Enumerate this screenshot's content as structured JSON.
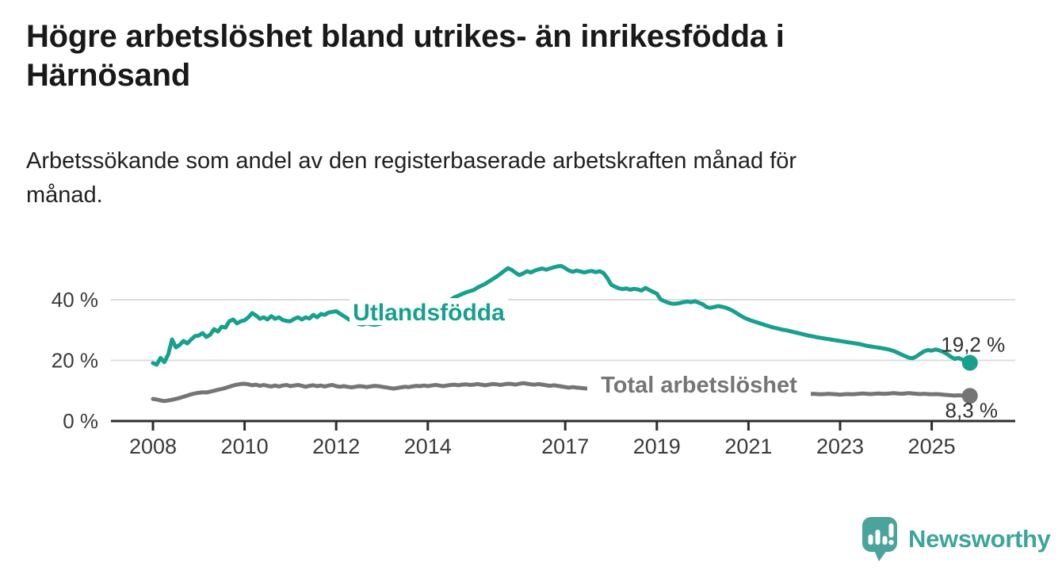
{
  "title_lines": [
    "Högre arbetslöshet bland utrikes- än inrikesfödda i",
    "Härnösand"
  ],
  "subtitle_lines": [
    "Arbetssökande som andel av den registerbaserade arbetskraften månad för",
    "månad."
  ],
  "branding": {
    "logo_text": "Newsworthy",
    "logo_color": "#3EA59B",
    "logo_icon": "bar-chart-speech-bubble"
  },
  "colors": {
    "background": "#ffffff",
    "title_text": "#191919",
    "axis_line": "#2e2e2e",
    "axis_text": "#3a3a3a",
    "gridline": "#dcdcdc",
    "annotation_text": "#2f2f2f",
    "series_foreign_born": "#16A08D",
    "series_total": "#757575"
  },
  "chart_data": {
    "type": "line",
    "x_unit": "month",
    "x_start": "2008-01",
    "x_end": "2025-11",
    "x_tick_years": [
      2008,
      2010,
      2012,
      2014,
      2017,
      2019,
      2021,
      2023,
      2025
    ],
    "x_tick_labels": [
      "2008",
      "2010",
      "2012",
      "2014",
      "2017",
      "2019",
      "2021",
      "2023",
      "2025"
    ],
    "y_ticks": [
      {
        "value": 0,
        "label": "0 %"
      },
      {
        "value": 20,
        "label": "20 %"
      },
      {
        "value": 40,
        "label": "40 %"
      }
    ],
    "ylim": [
      0,
      55
    ],
    "grid": "horizontal",
    "legend": "inline-labels",
    "series": [
      {
        "name": "Utlandsfödda",
        "color": "#16A08D",
        "end_value": 19.2,
        "end_label": "19,2 %",
        "values": [
          19.1,
          18.6,
          20.8,
          19.4,
          22.0,
          26.9,
          24.3,
          25.1,
          26.4,
          25.6,
          26.9,
          28.0,
          28.2,
          29.0,
          27.7,
          28.5,
          30.3,
          29.5,
          31.1,
          30.8,
          32.9,
          33.5,
          32.2,
          32.9,
          33.2,
          34.2,
          35.6,
          34.8,
          33.7,
          34.2,
          33.5,
          34.6,
          33.7,
          34.2,
          33.3,
          33.0,
          32.9,
          33.7,
          34.2,
          33.5,
          34.2,
          33.8,
          35.0,
          34.2,
          35.3,
          35.0,
          35.8,
          36.0,
          36.2,
          35.4,
          34.6,
          33.8,
          33.0,
          32.4,
          32.0,
          31.8,
          32.2,
          31.9,
          31.7,
          31.9,
          32.2,
          32.6,
          32.2,
          32.8,
          33.2,
          33.6,
          34.0,
          34.4,
          34.2,
          34.8,
          35.4,
          36.0,
          36.5,
          37.2,
          36.8,
          37.6,
          38.4,
          39.2,
          40.0,
          40.8,
          41.3,
          41.9,
          42.4,
          42.8,
          43.2,
          44.0,
          44.6,
          45.2,
          46.0,
          46.8,
          47.6,
          48.5,
          49.5,
          50.4,
          49.8,
          48.9,
          48.1,
          48.7,
          49.4,
          49.0,
          49.6,
          50.0,
          50.3,
          49.9,
          50.3,
          50.7,
          51.0,
          51.1,
          50.4,
          49.6,
          49.2,
          49.6,
          49.3,
          49.0,
          49.3,
          49.5,
          49.1,
          49.4,
          48.8,
          47.2,
          45.0,
          44.3,
          43.8,
          43.5,
          43.7,
          43.3,
          43.6,
          43.4,
          43.0,
          43.9,
          43.2,
          42.6,
          42.0,
          40.1,
          39.5,
          39.0,
          38.7,
          38.7,
          38.9,
          39.2,
          39.4,
          39.2,
          39.5,
          39.0,
          38.5,
          37.6,
          37.3,
          37.6,
          37.9,
          37.7,
          37.4,
          36.9,
          36.3,
          35.5,
          34.7,
          34.0,
          33.5,
          33.0,
          32.6,
          32.2,
          31.8,
          31.4,
          31.0,
          30.7,
          30.4,
          30.1,
          29.9,
          29.6,
          29.3,
          29.0,
          28.7,
          28.4,
          28.1,
          27.9,
          27.6,
          27.4,
          27.2,
          27.0,
          26.8,
          26.6,
          26.4,
          26.2,
          26.0,
          25.8,
          25.6,
          25.4,
          25.1,
          24.8,
          24.6,
          24.4,
          24.2,
          24.0,
          23.8,
          23.5,
          23.1,
          22.6,
          22.0,
          21.4,
          20.9,
          20.7,
          21.3,
          22.2,
          23.0,
          23.4,
          23.2,
          23.6,
          23.3,
          22.8,
          22.1,
          21.2,
          20.5,
          20.8,
          20.3,
          19.8,
          19.2
        ]
      },
      {
        "name": "Total arbetslöshet",
        "color": "#757575",
        "end_value": 8.3,
        "end_label": "8,3 %",
        "values": [
          7.3,
          7.1,
          6.8,
          6.6,
          6.8,
          7.0,
          7.3,
          7.6,
          8.0,
          8.4,
          8.8,
          9.1,
          9.3,
          9.5,
          9.4,
          9.7,
          10.0,
          10.3,
          10.6,
          10.9,
          11.3,
          11.7,
          12.0,
          12.2,
          12.3,
          12.1,
          11.8,
          12.0,
          11.6,
          11.9,
          11.6,
          11.4,
          11.7,
          11.4,
          11.7,
          11.9,
          11.5,
          11.7,
          11.9,
          11.6,
          11.3,
          11.6,
          11.8,
          11.5,
          11.7,
          11.4,
          11.7,
          11.9,
          11.5,
          11.3,
          11.5,
          11.3,
          11.1,
          11.3,
          11.5,
          11.4,
          11.2,
          11.4,
          11.6,
          11.5,
          11.3,
          11.1,
          10.9,
          10.7,
          10.9,
          11.1,
          11.3,
          11.2,
          11.4,
          11.6,
          11.5,
          11.7,
          11.5,
          11.7,
          11.9,
          11.7,
          11.5,
          11.7,
          11.9,
          12.0,
          11.8,
          12.0,
          12.1,
          11.9,
          12.0,
          12.2,
          12.0,
          11.8,
          12.0,
          12.2,
          12.1,
          11.9,
          12.1,
          12.3,
          12.2,
          12.0,
          12.3,
          12.5,
          12.3,
          12.1,
          12.0,
          12.2,
          12.0,
          11.8,
          11.6,
          11.8,
          11.6,
          11.4,
          11.2,
          11.0,
          11.2,
          11.0,
          10.9,
          10.8,
          10.7,
          10.6,
          10.5,
          10.4,
          10.3,
          10.3,
          10.2,
          10.1,
          10.0,
          9.9,
          9.9,
          9.8,
          9.8,
          9.7,
          9.6,
          9.6,
          9.5,
          9.5,
          9.4,
          9.4,
          9.3,
          9.3,
          9.2,
          9.2,
          9.3,
          9.3,
          9.2,
          9.2,
          9.1,
          9.1,
          9.2,
          9.1,
          9.3,
          9.7,
          9.9,
          9.8,
          9.7,
          9.6,
          9.5,
          9.4,
          9.3,
          9.2,
          9.1,
          9.1,
          9.0,
          9.0,
          8.9,
          8.9,
          8.8,
          8.8,
          8.9,
          8.9,
          8.8,
          8.8,
          8.7,
          8.8,
          8.9,
          8.8,
          8.9,
          9.0,
          8.9,
          8.8,
          8.9,
          9.0,
          8.9,
          8.8,
          8.7,
          8.8,
          8.9,
          8.8,
          8.9,
          9.0,
          9.1,
          9.0,
          8.9,
          9.0,
          9.1,
          9.0,
          9.0,
          9.1,
          9.2,
          9.1,
          9.0,
          9.1,
          9.2,
          9.1,
          9.0,
          8.9,
          9.0,
          8.9,
          8.8,
          8.9,
          8.8,
          8.7,
          8.6,
          8.5,
          8.4,
          8.5,
          8.4,
          8.4,
          8.3
        ]
      }
    ]
  }
}
